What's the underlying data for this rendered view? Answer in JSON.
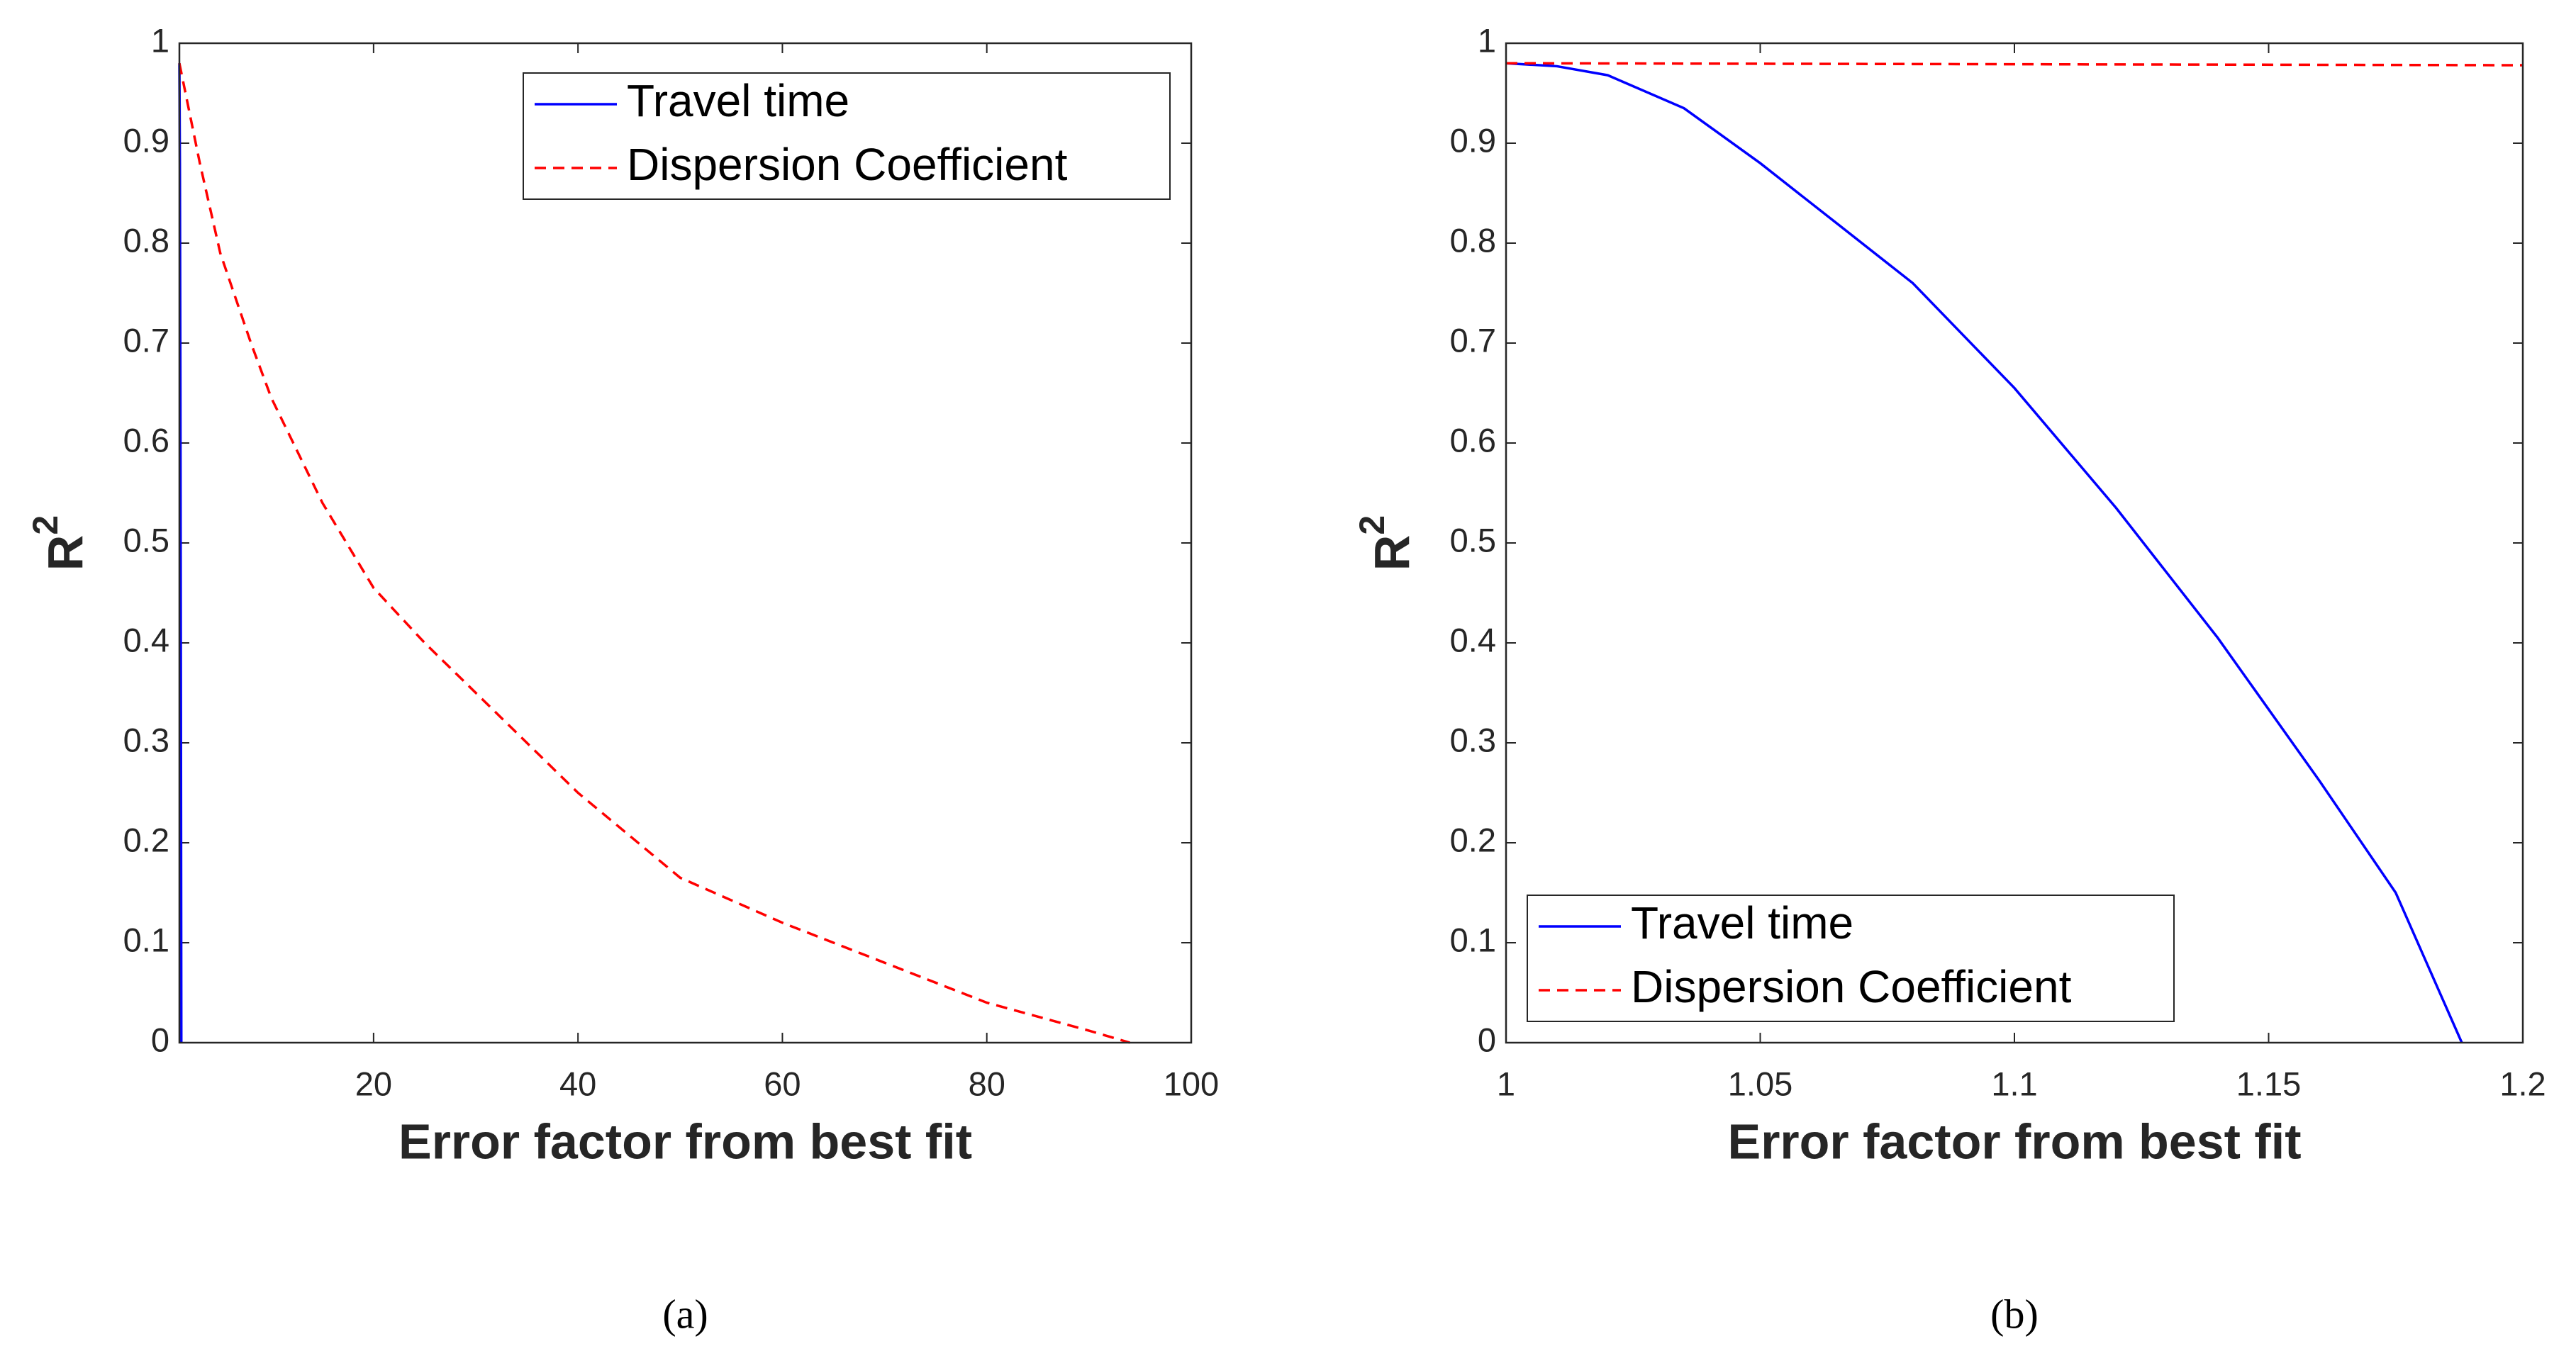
{
  "chart_data": [
    {
      "type": "line",
      "caption": "(a)",
      "xlabel": "Error factor from best fit",
      "ylabel": {
        "base": "R",
        "sup": "2"
      },
      "xlim": [
        1,
        100
      ],
      "xticks": [
        20,
        40,
        60,
        80,
        100
      ],
      "ylim": [
        0,
        1
      ],
      "yticks": [
        0,
        0.1,
        0.2,
        0.3,
        0.4,
        0.5,
        0.6,
        0.7,
        0.8,
        0.9,
        1
      ],
      "legend": "upper right",
      "grid": false,
      "series": [
        {
          "name": "Travel time",
          "color": "#0000ff",
          "dash": false,
          "x": [
            1,
            1.05,
            1.1,
            1.15,
            1.19
          ],
          "values": [
            0.98,
            0.88,
            0.655,
            0.33,
            0
          ]
        },
        {
          "name": "Dispersion Coefficient",
          "color": "#ff0000",
          "dash": true,
          "x": [
            1,
            3,
            5,
            8,
            10,
            15,
            20,
            25,
            30,
            35,
            40,
            50,
            60,
            70,
            80,
            90,
            94
          ],
          "values": [
            0.98,
            0.88,
            0.79,
            0.7,
            0.645,
            0.54,
            0.455,
            0.4,
            0.35,
            0.3,
            0.25,
            0.165,
            0.12,
            0.08,
            0.04,
            0.012,
            0
          ]
        }
      ]
    },
    {
      "type": "line",
      "caption": "(b)",
      "xlabel": "Error factor from best fit",
      "ylabel": {
        "base": "R",
        "sup": "2"
      },
      "xlim": [
        1,
        1.2
      ],
      "xticks": [
        1,
        1.05,
        1.1,
        1.15,
        1.2
      ],
      "ylim": [
        0,
        1
      ],
      "yticks": [
        0,
        0.1,
        0.2,
        0.3,
        0.4,
        0.5,
        0.6,
        0.7,
        0.8,
        0.9,
        1
      ],
      "legend": "lower left",
      "grid": false,
      "series": [
        {
          "name": "Travel time",
          "color": "#0000ff",
          "dash": false,
          "x": [
            1,
            1.01,
            1.02,
            1.035,
            1.05,
            1.065,
            1.08,
            1.1,
            1.12,
            1.14,
            1.16,
            1.175,
            1.188
          ],
          "values": [
            0.98,
            0.977,
            0.968,
            0.935,
            0.88,
            0.82,
            0.76,
            0.655,
            0.535,
            0.405,
            0.262,
            0.15,
            0
          ]
        },
        {
          "name": "Dispersion Coefficient",
          "color": "#ff0000",
          "dash": true,
          "x": [
            1,
            1.2
          ],
          "values": [
            0.98,
            0.978
          ]
        }
      ]
    }
  ]
}
